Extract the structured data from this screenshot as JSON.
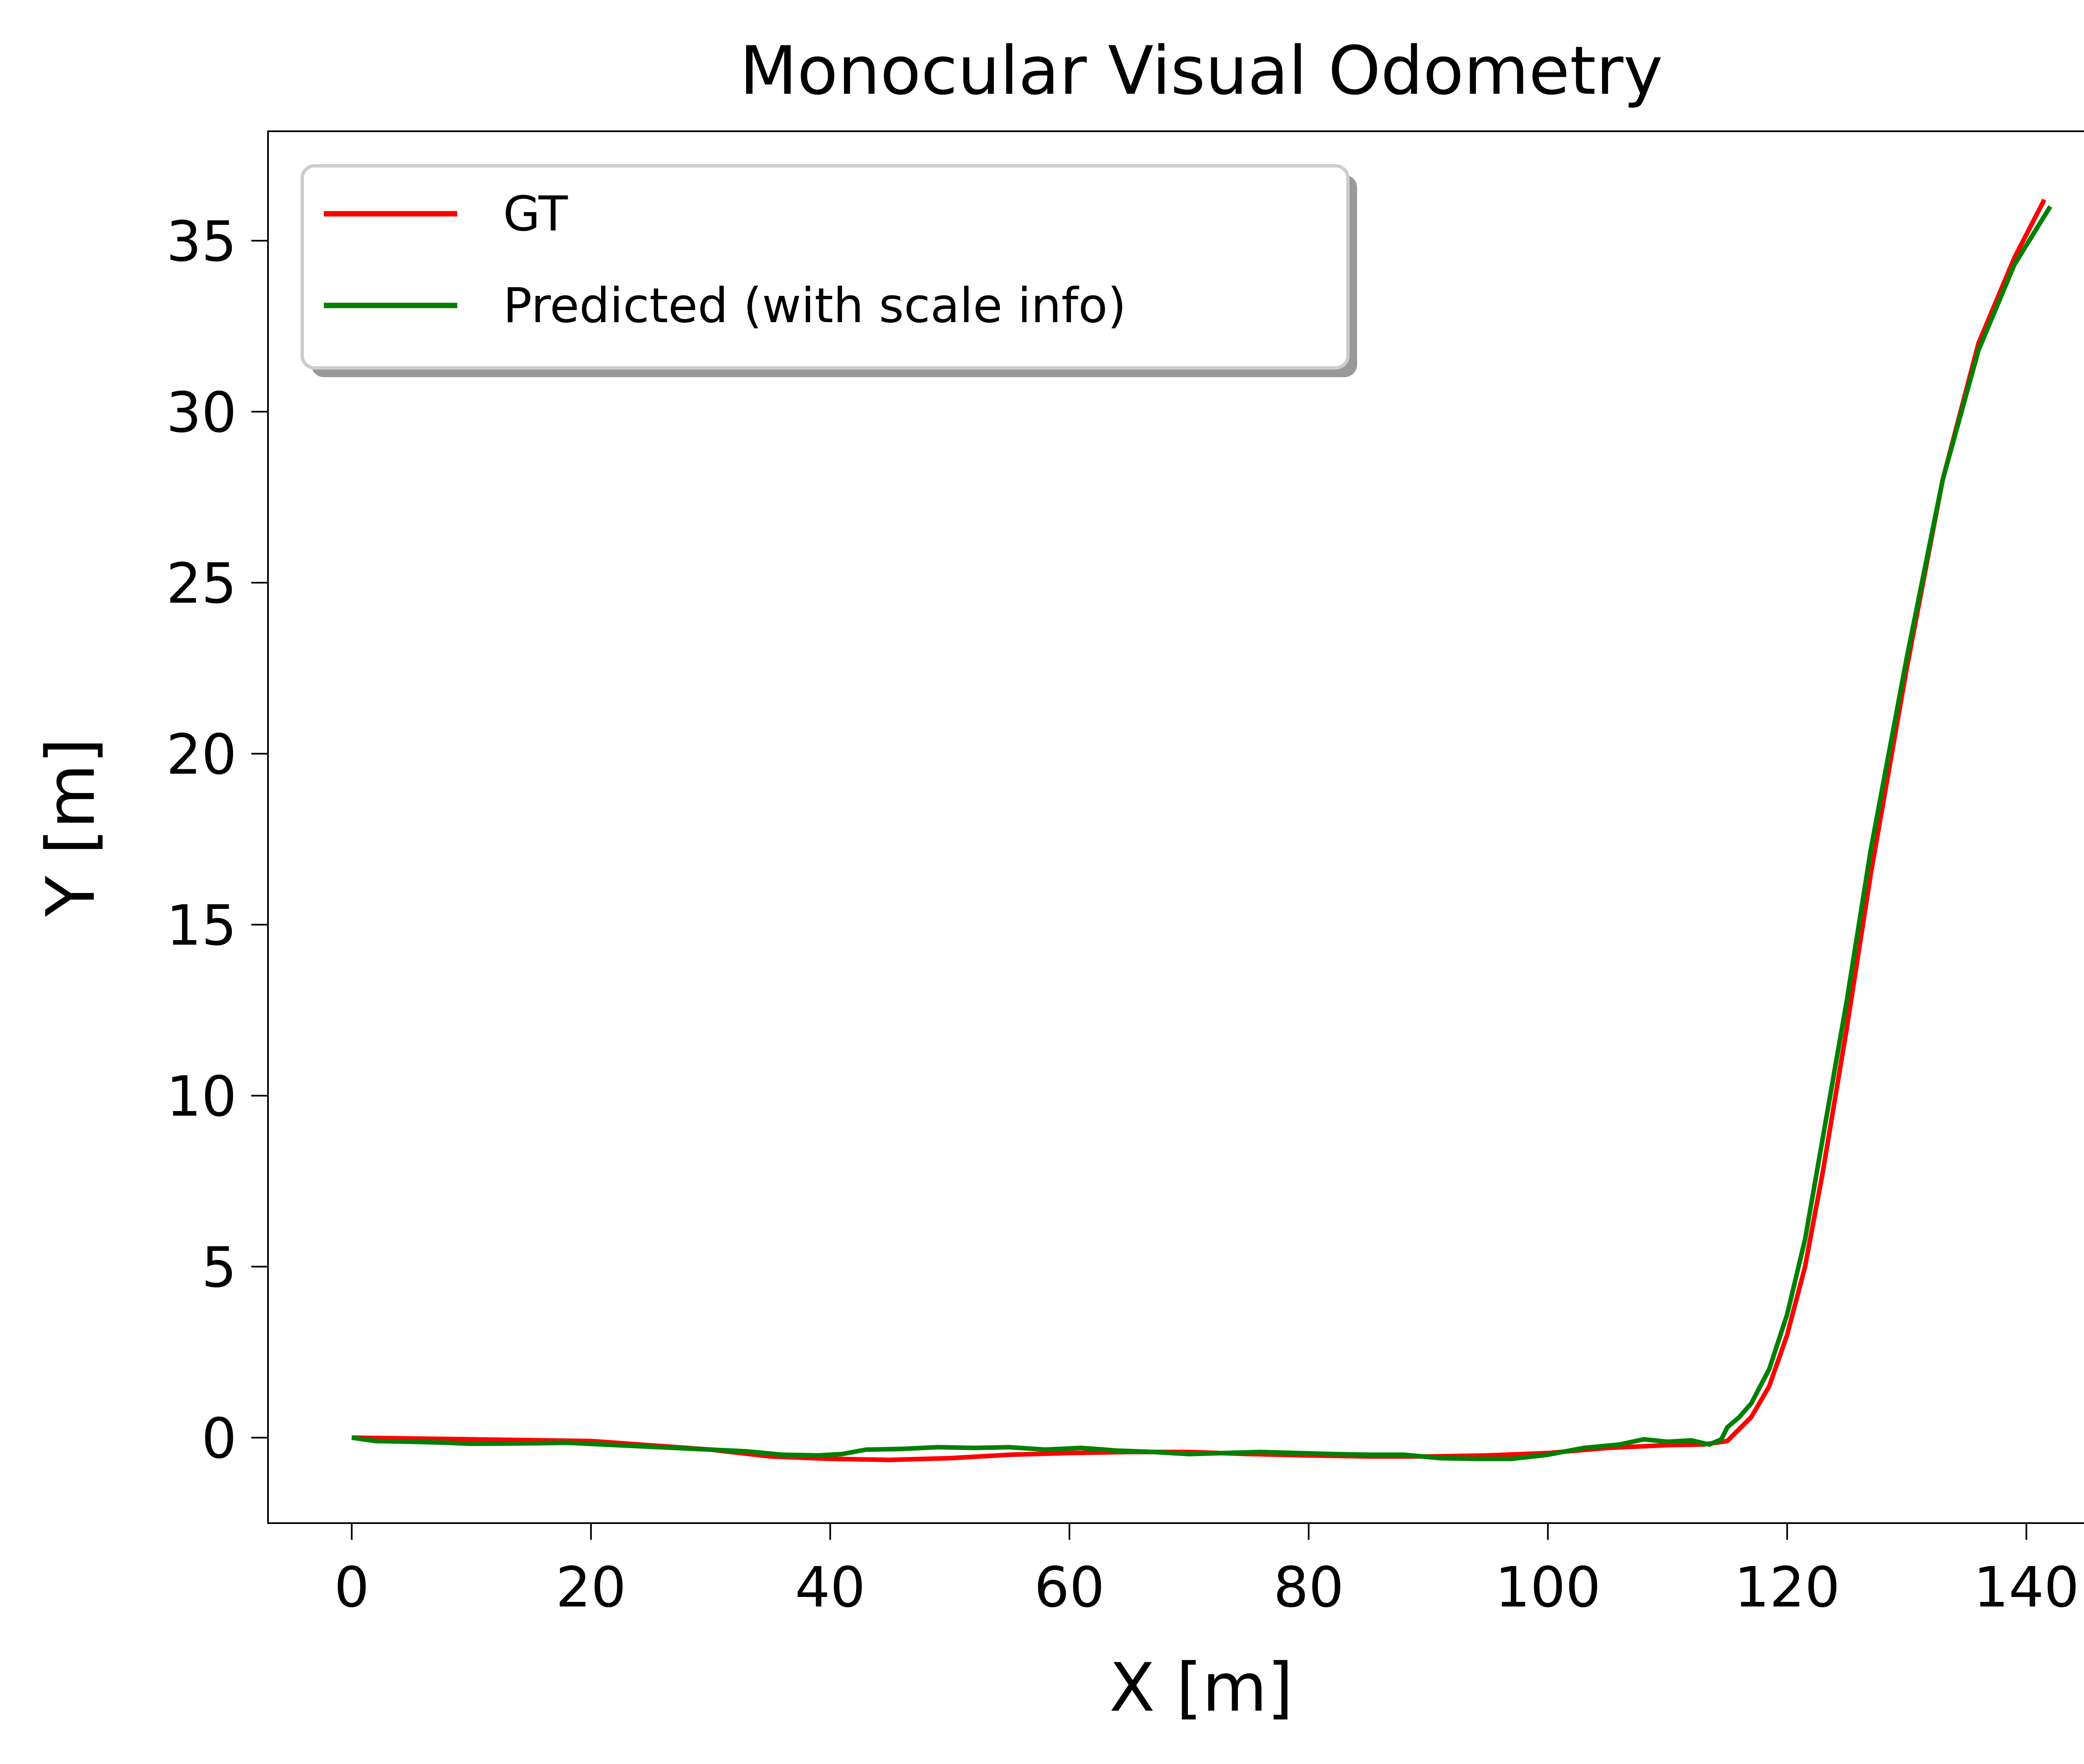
{
  "chart_data": {
    "type": "line",
    "title": "Monocular Visual Odometry",
    "xlabel": "X [m]",
    "ylabel": "Y [m]",
    "xlim": [
      -7,
      149
    ],
    "ylim": [
      -2.5,
      38.2
    ],
    "xticks": [
      "0",
      "20",
      "40",
      "60",
      "80",
      "100",
      "120",
      "140"
    ],
    "yticks": [
      "0",
      "5",
      "10",
      "15",
      "20",
      "25",
      "30",
      "35"
    ],
    "grid": false,
    "legend_position": "top-left",
    "series": [
      {
        "name": "GT",
        "color": "#ff0000",
        "points": [
          [
            0,
            0
          ],
          [
            10,
            -0.05
          ],
          [
            20,
            -0.1
          ],
          [
            30,
            -0.35
          ],
          [
            35,
            -0.55
          ],
          [
            40,
            -0.62
          ],
          [
            45,
            -0.65
          ],
          [
            50,
            -0.6
          ],
          [
            55,
            -0.5
          ],
          [
            60,
            -0.45
          ],
          [
            65,
            -0.42
          ],
          [
            70,
            -0.42
          ],
          [
            75,
            -0.48
          ],
          [
            80,
            -0.52
          ],
          [
            85,
            -0.55
          ],
          [
            90,
            -0.55
          ],
          [
            95,
            -0.52
          ],
          [
            100,
            -0.45
          ],
          [
            105,
            -0.3
          ],
          [
            110,
            -0.22
          ],
          [
            113,
            -0.2
          ],
          [
            115,
            -0.1
          ],
          [
            117,
            0.6
          ],
          [
            118.5,
            1.5
          ],
          [
            120,
            3.0
          ],
          [
            121.5,
            5.0
          ],
          [
            123,
            7.8
          ],
          [
            125,
            12.0
          ],
          [
            127,
            16.5
          ],
          [
            130,
            22.5
          ],
          [
            133,
            28.0
          ],
          [
            136,
            32.0
          ],
          [
            139,
            34.5
          ],
          [
            141.5,
            36.2
          ]
        ]
      },
      {
        "name": "Predicted (with scale info)",
        "color": "#008000",
        "points": [
          [
            0,
            0
          ],
          [
            2,
            -0.1
          ],
          [
            5,
            -0.12
          ],
          [
            8,
            -0.15
          ],
          [
            10,
            -0.18
          ],
          [
            14,
            -0.17
          ],
          [
            18,
            -0.15
          ],
          [
            21,
            -0.2
          ],
          [
            24,
            -0.25
          ],
          [
            27,
            -0.3
          ],
          [
            30,
            -0.35
          ],
          [
            33,
            -0.4
          ],
          [
            36,
            -0.5
          ],
          [
            39,
            -0.52
          ],
          [
            41,
            -0.48
          ],
          [
            43,
            -0.35
          ],
          [
            46,
            -0.33
          ],
          [
            49,
            -0.28
          ],
          [
            52,
            -0.3
          ],
          [
            55,
            -0.28
          ],
          [
            58,
            -0.35
          ],
          [
            61,
            -0.3
          ],
          [
            64,
            -0.38
          ],
          [
            67,
            -0.42
          ],
          [
            70,
            -0.48
          ],
          [
            73,
            -0.45
          ],
          [
            76,
            -0.42
          ],
          [
            79,
            -0.45
          ],
          [
            82,
            -0.48
          ],
          [
            85,
            -0.5
          ],
          [
            88,
            -0.5
          ],
          [
            91,
            -0.6
          ],
          [
            94,
            -0.62
          ],
          [
            97,
            -0.62
          ],
          [
            100,
            -0.5
          ],
          [
            103,
            -0.3
          ],
          [
            106,
            -0.2
          ],
          [
            108,
            -0.05
          ],
          [
            110,
            -0.12
          ],
          [
            112,
            -0.08
          ],
          [
            113.5,
            -0.2
          ],
          [
            114.5,
            -0.05
          ],
          [
            115,
            0.3
          ],
          [
            116,
            0.6
          ],
          [
            117,
            1.0
          ],
          [
            118.5,
            2.0
          ],
          [
            120,
            3.6
          ],
          [
            121.5,
            5.8
          ],
          [
            123,
            8.8
          ],
          [
            125,
            12.8
          ],
          [
            127,
            17.2
          ],
          [
            130,
            22.8
          ],
          [
            133,
            28.0
          ],
          [
            136,
            31.8
          ],
          [
            139,
            34.3
          ],
          [
            142,
            36.0
          ]
        ]
      }
    ]
  }
}
